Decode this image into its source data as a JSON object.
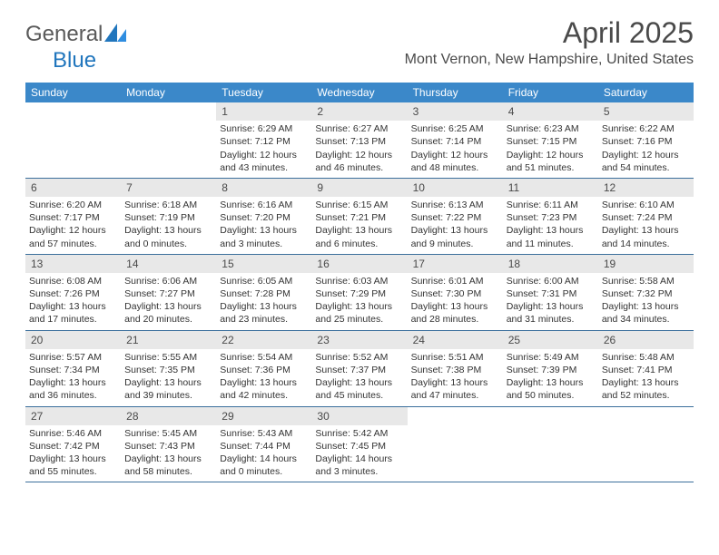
{
  "header": {
    "logo_general": "General",
    "logo_blue": "Blue",
    "month_title": "April 2025",
    "location": "Mont Vernon, New Hampshire, United States"
  },
  "style": {
    "header_bg": "#3b88c9",
    "header_text": "#ffffff",
    "daynum_bg": "#e8e8e8",
    "row_border": "#3b6f9c",
    "logo_blue_color": "#2176bd",
    "logo_gray_color": "#5a5a5a",
    "body_text": "#333333",
    "title_color": "#4a4a4a",
    "font_family": "Arial",
    "month_title_fontsize": 32,
    "location_fontsize": 16,
    "weekday_fontsize": 12,
    "daynum_fontsize": 12,
    "detail_fontsize": 10.5,
    "columns": 7
  },
  "weekdays": [
    "Sunday",
    "Monday",
    "Tuesday",
    "Wednesday",
    "Thursday",
    "Friday",
    "Saturday"
  ],
  "weeks": [
    [
      {
        "blank": true
      },
      {
        "blank": true
      },
      {
        "num": "1",
        "sunrise": "Sunrise: 6:29 AM",
        "sunset": "Sunset: 7:12 PM",
        "daylight": "Daylight: 12 hours and 43 minutes."
      },
      {
        "num": "2",
        "sunrise": "Sunrise: 6:27 AM",
        "sunset": "Sunset: 7:13 PM",
        "daylight": "Daylight: 12 hours and 46 minutes."
      },
      {
        "num": "3",
        "sunrise": "Sunrise: 6:25 AM",
        "sunset": "Sunset: 7:14 PM",
        "daylight": "Daylight: 12 hours and 48 minutes."
      },
      {
        "num": "4",
        "sunrise": "Sunrise: 6:23 AM",
        "sunset": "Sunset: 7:15 PM",
        "daylight": "Daylight: 12 hours and 51 minutes."
      },
      {
        "num": "5",
        "sunrise": "Sunrise: 6:22 AM",
        "sunset": "Sunset: 7:16 PM",
        "daylight": "Daylight: 12 hours and 54 minutes."
      }
    ],
    [
      {
        "num": "6",
        "sunrise": "Sunrise: 6:20 AM",
        "sunset": "Sunset: 7:17 PM",
        "daylight": "Daylight: 12 hours and 57 minutes."
      },
      {
        "num": "7",
        "sunrise": "Sunrise: 6:18 AM",
        "sunset": "Sunset: 7:19 PM",
        "daylight": "Daylight: 13 hours and 0 minutes."
      },
      {
        "num": "8",
        "sunrise": "Sunrise: 6:16 AM",
        "sunset": "Sunset: 7:20 PM",
        "daylight": "Daylight: 13 hours and 3 minutes."
      },
      {
        "num": "9",
        "sunrise": "Sunrise: 6:15 AM",
        "sunset": "Sunset: 7:21 PM",
        "daylight": "Daylight: 13 hours and 6 minutes."
      },
      {
        "num": "10",
        "sunrise": "Sunrise: 6:13 AM",
        "sunset": "Sunset: 7:22 PM",
        "daylight": "Daylight: 13 hours and 9 minutes."
      },
      {
        "num": "11",
        "sunrise": "Sunrise: 6:11 AM",
        "sunset": "Sunset: 7:23 PM",
        "daylight": "Daylight: 13 hours and 11 minutes."
      },
      {
        "num": "12",
        "sunrise": "Sunrise: 6:10 AM",
        "sunset": "Sunset: 7:24 PM",
        "daylight": "Daylight: 13 hours and 14 minutes."
      }
    ],
    [
      {
        "num": "13",
        "sunrise": "Sunrise: 6:08 AM",
        "sunset": "Sunset: 7:26 PM",
        "daylight": "Daylight: 13 hours and 17 minutes."
      },
      {
        "num": "14",
        "sunrise": "Sunrise: 6:06 AM",
        "sunset": "Sunset: 7:27 PM",
        "daylight": "Daylight: 13 hours and 20 minutes."
      },
      {
        "num": "15",
        "sunrise": "Sunrise: 6:05 AM",
        "sunset": "Sunset: 7:28 PM",
        "daylight": "Daylight: 13 hours and 23 minutes."
      },
      {
        "num": "16",
        "sunrise": "Sunrise: 6:03 AM",
        "sunset": "Sunset: 7:29 PM",
        "daylight": "Daylight: 13 hours and 25 minutes."
      },
      {
        "num": "17",
        "sunrise": "Sunrise: 6:01 AM",
        "sunset": "Sunset: 7:30 PM",
        "daylight": "Daylight: 13 hours and 28 minutes."
      },
      {
        "num": "18",
        "sunrise": "Sunrise: 6:00 AM",
        "sunset": "Sunset: 7:31 PM",
        "daylight": "Daylight: 13 hours and 31 minutes."
      },
      {
        "num": "19",
        "sunrise": "Sunrise: 5:58 AM",
        "sunset": "Sunset: 7:32 PM",
        "daylight": "Daylight: 13 hours and 34 minutes."
      }
    ],
    [
      {
        "num": "20",
        "sunrise": "Sunrise: 5:57 AM",
        "sunset": "Sunset: 7:34 PM",
        "daylight": "Daylight: 13 hours and 36 minutes."
      },
      {
        "num": "21",
        "sunrise": "Sunrise: 5:55 AM",
        "sunset": "Sunset: 7:35 PM",
        "daylight": "Daylight: 13 hours and 39 minutes."
      },
      {
        "num": "22",
        "sunrise": "Sunrise: 5:54 AM",
        "sunset": "Sunset: 7:36 PM",
        "daylight": "Daylight: 13 hours and 42 minutes."
      },
      {
        "num": "23",
        "sunrise": "Sunrise: 5:52 AM",
        "sunset": "Sunset: 7:37 PM",
        "daylight": "Daylight: 13 hours and 45 minutes."
      },
      {
        "num": "24",
        "sunrise": "Sunrise: 5:51 AM",
        "sunset": "Sunset: 7:38 PM",
        "daylight": "Daylight: 13 hours and 47 minutes."
      },
      {
        "num": "25",
        "sunrise": "Sunrise: 5:49 AM",
        "sunset": "Sunset: 7:39 PM",
        "daylight": "Daylight: 13 hours and 50 minutes."
      },
      {
        "num": "26",
        "sunrise": "Sunrise: 5:48 AM",
        "sunset": "Sunset: 7:41 PM",
        "daylight": "Daylight: 13 hours and 52 minutes."
      }
    ],
    [
      {
        "num": "27",
        "sunrise": "Sunrise: 5:46 AM",
        "sunset": "Sunset: 7:42 PM",
        "daylight": "Daylight: 13 hours and 55 minutes."
      },
      {
        "num": "28",
        "sunrise": "Sunrise: 5:45 AM",
        "sunset": "Sunset: 7:43 PM",
        "daylight": "Daylight: 13 hours and 58 minutes."
      },
      {
        "num": "29",
        "sunrise": "Sunrise: 5:43 AM",
        "sunset": "Sunset: 7:44 PM",
        "daylight": "Daylight: 14 hours and 0 minutes."
      },
      {
        "num": "30",
        "sunrise": "Sunrise: 5:42 AM",
        "sunset": "Sunset: 7:45 PM",
        "daylight": "Daylight: 14 hours and 3 minutes."
      },
      {
        "blank": true
      },
      {
        "blank": true
      },
      {
        "blank": true
      }
    ]
  ]
}
